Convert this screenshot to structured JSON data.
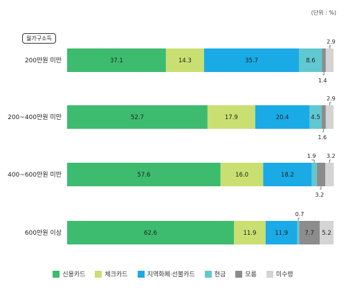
{
  "chart_data": {
    "type": "bar",
    "orientation": "horizontal",
    "stacked": true,
    "unit_label": "(단위 : %)",
    "group_label": "월가구소득",
    "categories": [
      "200만원 미만",
      "200~400만원 미만",
      "400~600만원 미만",
      "600만원 이상"
    ],
    "series": [
      {
        "name": "신용카드",
        "color": "#3dbb6f",
        "values": [
          37.1,
          52.7,
          57.6,
          62.6
        ]
      },
      {
        "name": "체크카드",
        "color": "#c9df72",
        "values": [
          14.3,
          17.9,
          16.0,
          11.9
        ]
      },
      {
        "name": "지역화폐·선불카드",
        "color": "#1aaae6",
        "values": [
          35.7,
          20.4,
          18.2,
          11.9
        ]
      },
      {
        "name": "현금",
        "color": "#60c8d0",
        "values": [
          8.6,
          4.5,
          1.9,
          0.7
        ]
      },
      {
        "name": "모름",
        "color": "#8c8c8c",
        "values": [
          1.4,
          1.6,
          3.2,
          7.7
        ]
      },
      {
        "name": "미수령",
        "color": "#d4d4d4",
        "values": [
          2.9,
          2.9,
          3.2,
          5.2
        ]
      }
    ],
    "xlim": [
      0,
      100
    ],
    "legend_position": "bottom"
  }
}
